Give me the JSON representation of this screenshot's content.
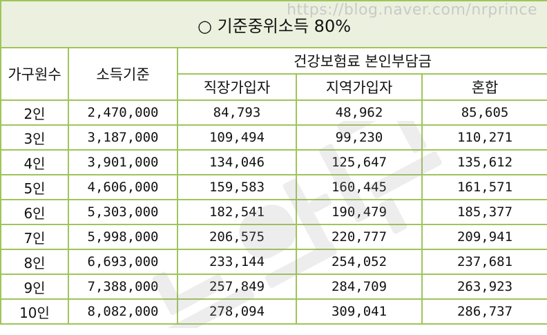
{
  "watermark_url": "https://blog.naver.com/nrprince",
  "title": "○ 기준중위소득 80%",
  "headers": {
    "household": "가구원수",
    "income": "소득기준",
    "premium_group": "건강보험료 본인부담금",
    "employee": "직장가입자",
    "regional": "지역가입자",
    "mixed": "혼합"
  },
  "rows": [
    {
      "household": "2인",
      "income": "2,470,000",
      "employee": "84,793",
      "regional": "48,962",
      "mixed": "85,605"
    },
    {
      "household": "3인",
      "income": "3,187,000",
      "employee": "109,494",
      "regional": "99,230",
      "mixed": "110,271"
    },
    {
      "household": "4인",
      "income": "3,901,000",
      "employee": "134,046",
      "regional": "125,647",
      "mixed": "135,612"
    },
    {
      "household": "5인",
      "income": "4,606,000",
      "employee": "159,583",
      "regional": "160,445",
      "mixed": "161,571"
    },
    {
      "household": "6인",
      "income": "5,303,000",
      "employee": "182,541",
      "regional": "190,479",
      "mixed": "185,377"
    },
    {
      "household": "7인",
      "income": "5,998,000",
      "employee": "206,575",
      "regional": "220,777",
      "mixed": "209,941"
    },
    {
      "household": "8인",
      "income": "6,693,000",
      "employee": "233,144",
      "regional": "254,052",
      "mixed": "237,681"
    },
    {
      "household": "9인",
      "income": "7,388,000",
      "employee": "257,849",
      "regional": "284,709",
      "mixed": "263,923"
    },
    {
      "household": "10인",
      "income": "8,082,000",
      "employee": "278,094",
      "regional": "309,041",
      "mixed": "286,737"
    }
  ],
  "colors": {
    "border": "#9fc45a",
    "title_background": "#ebf1de",
    "watermark": "#c9c9c9"
  }
}
